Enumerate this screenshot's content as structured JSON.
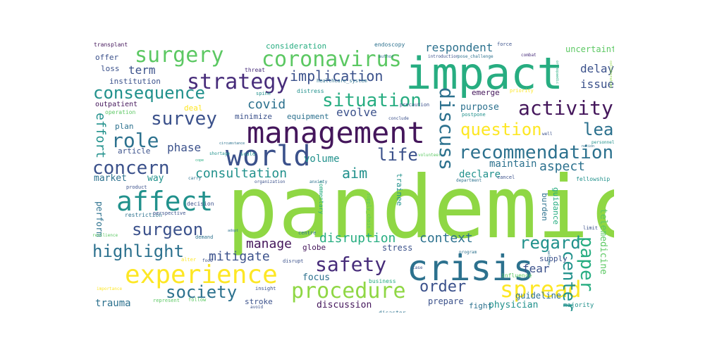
{
  "palette": {
    "dark_purple": "#44165b",
    "purple": "#472c7a",
    "indigo": "#3b518b",
    "blue": "#2c718e",
    "teal": "#21918c",
    "green_teal": "#27ad81",
    "green": "#5cc863",
    "lime": "#8fd744",
    "yellow": "#fde725"
  },
  "words": [
    {
      "text": "pandemic",
      "color": "#8fd744"
    },
    {
      "text": "impact",
      "color": "#27ad81"
    },
    {
      "text": "management",
      "color": "#44165b"
    },
    {
      "text": "crisis",
      "color": "#2c718e"
    },
    {
      "text": "world",
      "color": "#3b518b"
    },
    {
      "text": "affect",
      "color": "#21918c"
    },
    {
      "text": "experience",
      "color": "#fde725"
    },
    {
      "text": "coronavirus",
      "color": "#5cc863"
    },
    {
      "text": "surgery",
      "color": "#5cc863"
    },
    {
      "text": "strategy",
      "color": "#472c7a"
    },
    {
      "text": "spread",
      "color": "#fde725"
    },
    {
      "text": "procedure",
      "color": "#8fd744"
    },
    {
      "text": "consequence",
      "color": "#21918c"
    },
    {
      "text": "situation",
      "color": "#27ad81"
    },
    {
      "text": "activity",
      "color": "#44165b"
    },
    {
      "text": "survey",
      "color": "#3b518b"
    },
    {
      "text": "discuss",
      "color": "#2c718e"
    },
    {
      "text": "concern",
      "color": "#3b518b"
    },
    {
      "text": "recommendation",
      "color": "#2c718e"
    },
    {
      "text": "role",
      "color": "#2c718e"
    },
    {
      "text": "safety",
      "color": "#472c7a"
    },
    {
      "text": "question",
      "color": "#fde725"
    },
    {
      "text": "society",
      "color": "#2c718e"
    },
    {
      "text": "life",
      "color": "#3b518b"
    },
    {
      "text": "lead",
      "color": "#2c718e"
    },
    {
      "text": "surgeon",
      "color": "#3b518b"
    },
    {
      "text": "highlight",
      "color": "#2c718e"
    },
    {
      "text": "order",
      "color": "#3b518b"
    },
    {
      "text": "regard",
      "color": "#21918c"
    },
    {
      "text": "paper",
      "color": "#27ad81"
    },
    {
      "text": "center",
      "color": "#21918c"
    },
    {
      "text": "implication",
      "color": "#3b518b"
    },
    {
      "text": "respondent",
      "color": "#2c718e"
    },
    {
      "text": "term",
      "color": "#3b518b"
    },
    {
      "text": "delay",
      "color": "#3b518b"
    },
    {
      "text": "issue",
      "color": "#3b518b"
    },
    {
      "text": "aim",
      "color": "#21918c"
    },
    {
      "text": "manage",
      "color": "#44165b"
    },
    {
      "text": "consultation",
      "color": "#21918c"
    },
    {
      "text": "disruption",
      "color": "#27ad81"
    },
    {
      "text": "context",
      "color": "#2c718e"
    },
    {
      "text": "mitigate",
      "color": "#3b518b"
    },
    {
      "text": "covid",
      "color": "#2c718e"
    },
    {
      "text": "aspect",
      "color": "#2c718e"
    },
    {
      "text": "effort",
      "color": "#21918c"
    },
    {
      "text": "phase",
      "color": "#3b518b"
    },
    {
      "text": "fear",
      "color": "#3b518b"
    },
    {
      "text": "trauma",
      "color": "#2c718e"
    },
    {
      "text": "uncertainty",
      "color": "#5cc863"
    },
    {
      "text": "evolve",
      "color": "#3b518b"
    },
    {
      "text": "maintain",
      "color": "#2c718e"
    },
    {
      "text": "declare",
      "color": "#21918c"
    },
    {
      "text": "guideline",
      "color": "#2c718e"
    },
    {
      "text": "purpose",
      "color": "#2c718e"
    },
    {
      "text": "volume",
      "color": "#21918c"
    },
    {
      "text": "market",
      "color": "#2c718e"
    },
    {
      "text": "way",
      "color": "#21918c"
    },
    {
      "text": "stress",
      "color": "#3b518b"
    },
    {
      "text": "focus",
      "color": "#2c718e"
    },
    {
      "text": "discussion",
      "color": "#44165b"
    },
    {
      "text": "physician",
      "color": "#21918c"
    },
    {
      "text": "fight",
      "color": "#2c718e"
    },
    {
      "text": "prepare",
      "color": "#3b518b"
    },
    {
      "text": "stroke",
      "color": "#3b518b"
    },
    {
      "text": "supply",
      "color": "#3b518b"
    },
    {
      "text": "burden",
      "color": "#2c718e"
    },
    {
      "text": "telemedicine",
      "color": "#5cc863"
    },
    {
      "text": "guidance",
      "color": "#27ad81"
    },
    {
      "text": "trainee",
      "color": "#21918c"
    },
    {
      "text": "perform",
      "color": "#2c718e"
    },
    {
      "text": "globe",
      "color": "#44165b"
    },
    {
      "text": "minimize",
      "color": "#3b518b"
    },
    {
      "text": "equipment",
      "color": "#2c718e"
    },
    {
      "text": "emerge",
      "color": "#44165b"
    },
    {
      "text": "institution",
      "color": "#3b518b"
    },
    {
      "text": "loss",
      "color": "#3b518b"
    },
    {
      "text": "offer",
      "color": "#3b518b"
    },
    {
      "text": "plan",
      "color": "#2c718e"
    },
    {
      "text": "article",
      "color": "#3b518b"
    },
    {
      "text": "deal",
      "color": "#fde725"
    },
    {
      "text": "consideration",
      "color": "#27ad81"
    },
    {
      "text": "endoscopy",
      "color": "#2c718e"
    },
    {
      "text": "outpatient",
      "color": "#44165b"
    },
    {
      "text": "majority",
      "color": "#21918c"
    },
    {
      "text": "fellowship",
      "color": "#21918c"
    },
    {
      "text": "commentary",
      "color": "#27ad81"
    },
    {
      "text": "transplant",
      "color": "#44165b"
    },
    {
      "text": "threat",
      "color": "#472c7a"
    },
    {
      "text": "distress",
      "color": "#21918c"
    },
    {
      "text": "precaution",
      "color": "#3b518b"
    },
    {
      "text": "postpone",
      "color": "#21918c"
    },
    {
      "text": "operation",
      "color": "#5cc863"
    },
    {
      "text": "healthcare_system",
      "color": "#2c718e"
    },
    {
      "text": "priority",
      "color": "#fde725"
    },
    {
      "text": "force",
      "color": "#3b518b"
    },
    {
      "text": "author",
      "color": "#2c718e"
    },
    {
      "text": "introduction",
      "color": "#3b518b"
    },
    {
      "text": "pose_challenge",
      "color": "#2c718e"
    },
    {
      "text": "combat",
      "color": "#472c7a"
    },
    {
      "text": "spine",
      "color": "#21918c"
    },
    {
      "text": "conclude",
      "color": "#3b518b"
    },
    {
      "text": "shortage",
      "color": "#21918c"
    },
    {
      "text": "scale",
      "color": "#21918c"
    },
    {
      "text": "circumstance",
      "color": "#2c718e"
    },
    {
      "text": "decision",
      "color": "#3b518b"
    },
    {
      "text": "restriction",
      "color": "#2c718e"
    },
    {
      "text": "perspective",
      "color": "#3b518b"
    },
    {
      "text": "resilience",
      "color": "#5cc863"
    },
    {
      "text": "demand",
      "color": "#2c718e"
    },
    {
      "text": "adopt",
      "color": "#2c718e"
    },
    {
      "text": "product",
      "color": "#3b518b"
    },
    {
      "text": "cancel",
      "color": "#3b518b"
    },
    {
      "text": "department",
      "color": "#2c718e"
    },
    {
      "text": "organization",
      "color": "#3b518b"
    },
    {
      "text": "centre",
      "color": "#2c718e"
    },
    {
      "text": "supply_chain",
      "color": "#5cc863"
    },
    {
      "text": "disrupt",
      "color": "#3b518b"
    },
    {
      "text": "program",
      "color": "#2c718e"
    },
    {
      "text": "business",
      "color": "#27ad81"
    },
    {
      "text": "influence",
      "color": "#5cc863"
    },
    {
      "text": "disaster",
      "color": "#2c718e"
    },
    {
      "text": "insight",
      "color": "#3b518b"
    },
    {
      "text": "represent",
      "color": "#5cc863"
    },
    {
      "text": "follow",
      "color": "#5cc863"
    },
    {
      "text": "avoid",
      "color": "#3b518b"
    },
    {
      "text": "importance",
      "color": "#fde725"
    },
    {
      "text": "limit",
      "color": "#3b518b"
    },
    {
      "text": "carry",
      "color": "#2c718e"
    },
    {
      "text": "anxiety",
      "color": "#2c718e"
    },
    {
      "text": "volunteer",
      "color": "#5cc863"
    },
    {
      "text": "personnel",
      "color": "#21918c"
    },
    {
      "text": "nation",
      "color": "#2c718e"
    },
    {
      "text": "well",
      "color": "#3b518b"
    },
    {
      "text": "alter",
      "color": "#fde725"
    },
    {
      "text": "food",
      "color": "#3b518b"
    },
    {
      "text": "cope",
      "color": "#27ad81"
    },
    {
      "text": "case",
      "color": "#3b518b"
    },
    {
      "text": "collaboration",
      "color": "#8fd744"
    },
    {
      "text": "orthopaedic",
      "color": "#27ad81"
    },
    {
      "text": "welcome",
      "color": "#2c718e"
    }
  ]
}
